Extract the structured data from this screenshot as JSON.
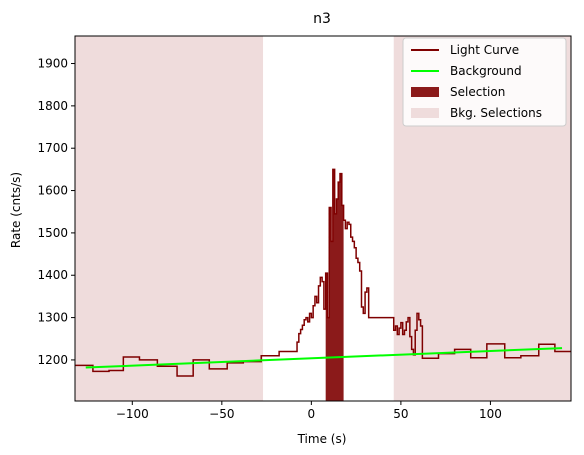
{
  "chart_data": {
    "type": "line",
    "title": "n3",
    "xlabel": "Time (s)",
    "ylabel": "Rate (cnts/s)",
    "xlim": [
      -132,
      145
    ],
    "ylim": [
      1103,
      1965
    ],
    "xticks": [
      -100,
      -50,
      0,
      50,
      100
    ],
    "xtick_labels": [
      "−100",
      "−50",
      "0",
      "50",
      "100"
    ],
    "yticks": [
      1200,
      1300,
      1400,
      1500,
      1600,
      1700,
      1800,
      1900
    ],
    "ytick_labels": [
      "1200",
      "1300",
      "1400",
      "1500",
      "1600",
      "1700",
      "1800",
      "1900"
    ],
    "grid": false,
    "legend_position": "top-right",
    "colors": {
      "light_curve": "#7f0000",
      "background": "#00ff00",
      "selection": "#8b1a1a",
      "bkg_selection": "#efdcdc"
    },
    "legend": [
      {
        "label": "Light Curve",
        "kind": "line",
        "color": "#7f0000"
      },
      {
        "label": "Background",
        "kind": "line",
        "color": "#00ff00"
      },
      {
        "label": "Selection",
        "kind": "patch",
        "color": "#8b1a1a"
      },
      {
        "label": "Bkg. Selections",
        "kind": "patch",
        "color": "#efdcdc"
      }
    ],
    "series": [
      {
        "name": "Light Curve",
        "kind": "step",
        "x": [
          -132,
          -122,
          -113,
          -105,
          -96,
          -86,
          -75,
          -66,
          -57,
          -47,
          -38,
          -28,
          -18,
          -10,
          -8,
          -7,
          -6,
          -5,
          -4,
          -3,
          -2,
          -1,
          0,
          1,
          2,
          3,
          4,
          5,
          6,
          7,
          8,
          9,
          10,
          11,
          12,
          13,
          14,
          15,
          16,
          17,
          18,
          19,
          20,
          21,
          22,
          23,
          24,
          25,
          26,
          27,
          28,
          29,
          30,
          31,
          32,
          46,
          47,
          48,
          49,
          50,
          51,
          52,
          53,
          54,
          55,
          56,
          57,
          58,
          59,
          60,
          61,
          62,
          71,
          80,
          89,
          98,
          108,
          117,
          127,
          136,
          145
        ],
        "y": [
          1187,
          1173,
          1175,
          1207,
          1200,
          1185,
          1162,
          1200,
          1179,
          1193,
          1196,
          1210,
          1220,
          1220,
          1242,
          1262,
          1272,
          1282,
          1295,
          1300,
          1290,
          1310,
          1300,
          1328,
          1350,
          1335,
          1375,
          1395,
          1385,
          1320,
          1405,
          1300,
          1560,
          1480,
          1650,
          1545,
          1580,
          1620,
          1640,
          1565,
          1530,
          1510,
          1525,
          1520,
          1490,
          1480,
          1465,
          1440,
          1430,
          1410,
          1325,
          1310,
          1360,
          1370,
          1300,
          1270,
          1280,
          1260,
          1275,
          1288,
          1260,
          1270,
          1290,
          1300,
          1255,
          1225,
          1212,
          1270,
          1310,
          1295,
          1280,
          1204,
          1215,
          1225,
          1205,
          1238,
          1205,
          1210,
          1237,
          1220,
          1220
        ]
      },
      {
        "name": "Background",
        "kind": "linear",
        "x": [
          -126,
          140
        ],
        "y": [
          1182,
          1228
        ]
      }
    ],
    "selection": {
      "label": "Selection",
      "x0": 8,
      "x1": 18
    },
    "bkg_selections": [
      {
        "x0": -132,
        "x1": -27
      },
      {
        "x0": 46,
        "x1": 145
      }
    ]
  }
}
